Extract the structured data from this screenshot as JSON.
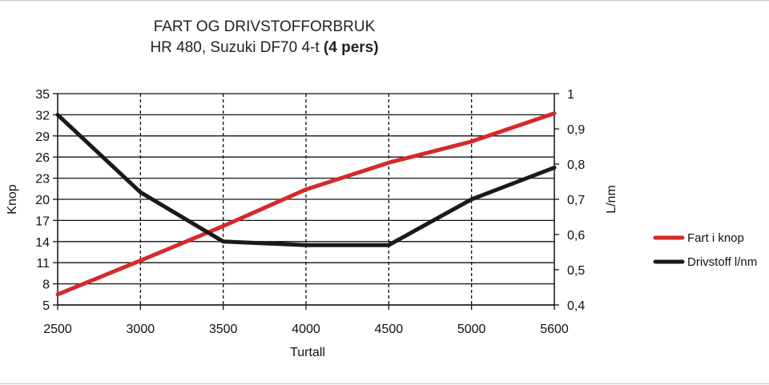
{
  "chart_data": {
    "type": "line",
    "title": "FART OG DRIVSTOFFORBRUK",
    "subtitle": {
      "prefix": "HR 480, Suzuki DF70 4-t ",
      "bold": "(4 pers)"
    },
    "xlabel": "Turtall",
    "ylabel_left": "Knop",
    "ylabel_right": "L/nm",
    "x": [
      "2500",
      "3000",
      "3500",
      "4000",
      "4500",
      "5000",
      "5600"
    ],
    "y_left": {
      "ticks": [
        "35",
        "32",
        "29",
        "26",
        "23",
        "20",
        "17",
        "14",
        "11",
        "8",
        "5"
      ],
      "ylim": [
        5,
        35
      ]
    },
    "y_right": {
      "ticks": [
        "1",
        "0,9",
        "0,8",
        "0,7",
        "0,6",
        "0,5",
        "0,4"
      ],
      "ylim": [
        0.4,
        1.0
      ]
    },
    "series": [
      {
        "name": "Fart i knop",
        "axis": "left",
        "color": "#d52a2a",
        "values": [
          6.5,
          11.3,
          16.2,
          21.4,
          25.2,
          28.2,
          32.2
        ]
      },
      {
        "name": "Drivstoff l/nm",
        "axis": "right",
        "color": "#1a1a1a",
        "values": [
          0.94,
          0.72,
          0.58,
          0.57,
          0.57,
          0.7,
          0.79
        ]
      }
    ],
    "grid": {
      "horizontal": "solid",
      "vertical": "dashed"
    },
    "legend": "right"
  }
}
